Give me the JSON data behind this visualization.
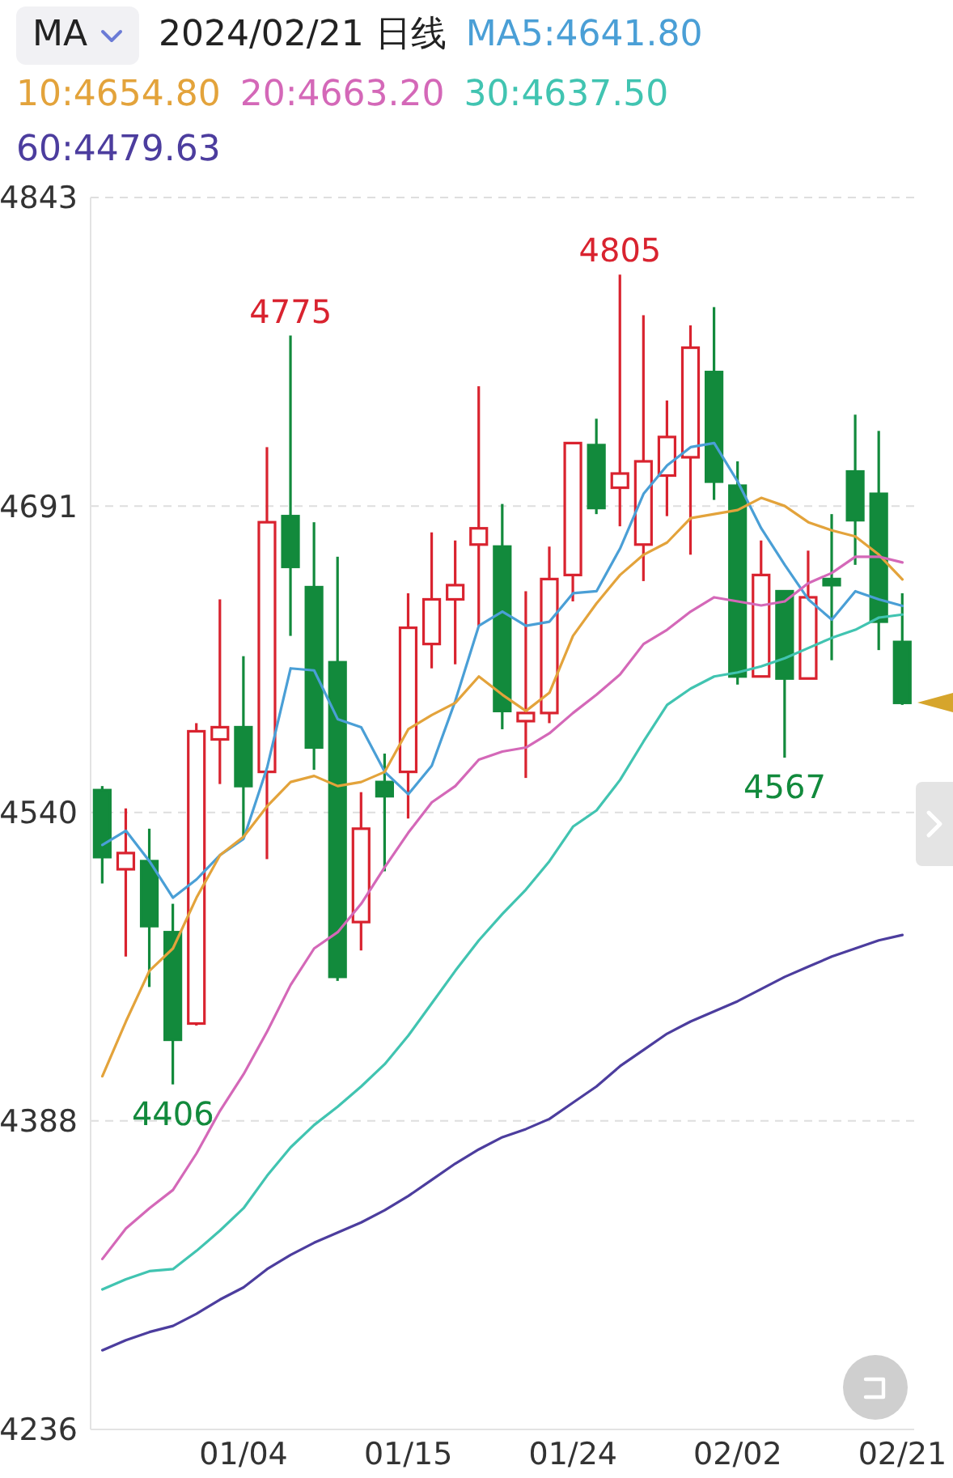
{
  "chart_data": {
    "type": "candlestick",
    "title": "2024/02/21 日线",
    "legend_title": "MA",
    "legend": "top left",
    "grid": "y",
    "categories": [
      null,
      null,
      null,
      null,
      null,
      null,
      "01/04",
      null,
      null,
      null,
      null,
      null,
      null,
      "01/15",
      null,
      null,
      null,
      null,
      null,
      null,
      "01/24",
      null,
      null,
      null,
      null,
      null,
      null,
      "02/02",
      null,
      null,
      null,
      null,
      null,
      null,
      "02/21"
    ],
    "ohlc": [
      [
        4551,
        4553,
        4505,
        4518
      ],
      [
        4512,
        4542,
        4469,
        4520
      ],
      [
        4516,
        4532,
        4454,
        4484
      ],
      [
        4481,
        4495,
        4406,
        4428
      ],
      [
        4436,
        4584,
        4435,
        4580
      ],
      [
        4576,
        4645,
        4554,
        4582
      ],
      [
        4582,
        4617,
        4528,
        4553
      ],
      [
        4560,
        4720,
        4517,
        4683
      ],
      [
        4686,
        4775,
        4627,
        4661
      ],
      [
        4651,
        4683,
        4561,
        4572
      ],
      [
        4614,
        4666,
        4457,
        4459
      ],
      [
        4486,
        4550,
        4472,
        4532
      ],
      [
        4555,
        4569,
        4511,
        4548
      ],
      [
        4560,
        4648,
        4537,
        4631
      ],
      [
        4623,
        4678,
        4611,
        4645
      ],
      [
        4645,
        4674,
        4613,
        4652
      ],
      [
        4672,
        4750,
        4632,
        4680
      ],
      [
        4671,
        4692,
        4581,
        4590
      ],
      [
        4585,
        4649,
        4557,
        4589
      ],
      [
        4589,
        4671,
        4584,
        4655
      ],
      [
        4657,
        4722,
        4644,
        4722
      ],
      [
        4721,
        4734,
        4687,
        4690
      ],
      [
        4700,
        4805,
        4681,
        4707
      ],
      [
        4672,
        4785,
        4654,
        4713
      ],
      [
        4706,
        4743,
        4686,
        4725
      ],
      [
        4715,
        4780,
        4667,
        4769
      ],
      [
        4757,
        4789,
        4694,
        4703
      ],
      [
        4701,
        4713,
        4603,
        4607
      ],
      [
        4607,
        4674,
        4607,
        4657
      ],
      [
        4649,
        4649,
        4567,
        4606
      ],
      [
        4606,
        4669,
        4606,
        4646
      ],
      [
        4655,
        4687,
        4615,
        4652
      ],
      [
        4708,
        4736,
        4662,
        4684
      ],
      [
        4697,
        4728,
        4620,
        4634
      ],
      [
        4624,
        4648,
        4593,
        4594
      ]
    ],
    "colors": [
      "#128a3c",
      "#d9232f",
      "#128a3c",
      "#128a3c",
      "#d9232f",
      "#d9232f",
      "#128a3c",
      "#d9232f",
      "#128a3c",
      "#128a3c",
      "#128a3c",
      "#d9232f",
      "#128a3c",
      "#d9232f",
      "#d9232f",
      "#d9232f",
      "#d9232f",
      "#128a3c",
      "#d9232f",
      "#d9232f",
      "#d9232f",
      "#128a3c",
      "#d9232f",
      "#d9232f",
      "#d9232f",
      "#d9232f",
      "#128a3c",
      "#128a3c",
      "#d9232f",
      "#128a3c",
      "#d9232f",
      "#128a3c",
      "#128a3c",
      "#128a3c",
      "#128a3c"
    ],
    "series": [
      {
        "type": "line",
        "name": "MA5:4641.80",
        "color": "#4a9fd6",
        "values": [
          4524,
          4531,
          4516,
          4498,
          4507,
          4519,
          4527,
          4562,
          4611,
          4610,
          4586,
          4582,
          4560,
          4549,
          4563,
          4595,
          4632,
          4639,
          4632,
          4634,
          4648,
          4649,
          4670,
          4697,
          4711,
          4720,
          4722,
          4703,
          4680,
          4662,
          4645,
          4635,
          4649,
          4645,
          4641.8
        ]
      },
      {
        "type": "line",
        "name": "10:4654.80",
        "color": "#e3a33b",
        "values": [
          4410,
          4437,
          4462,
          4473,
          4498,
          4519,
          4528,
          4543,
          4555,
          4558,
          4553,
          4555,
          4560,
          4581,
          4588,
          4594,
          4607,
          4598,
          4590,
          4599,
          4627,
          4643,
          4657,
          4667,
          4673,
          4685,
          4687,
          4689,
          4695,
          4691,
          4683,
          4679,
          4676,
          4667,
          4654.8
        ]
      },
      {
        "type": "line",
        "name": "20:4663.20",
        "color": "#d468b8",
        "values": [
          4320,
          4335,
          4345,
          4354,
          4372,
          4393,
          4411,
          4432,
          4455,
          4473,
          4481,
          4495,
          4513,
          4530,
          4545,
          4553,
          4566,
          4570,
          4572,
          4579,
          4589,
          4598,
          4608,
          4623,
          4630,
          4639,
          4646,
          4644,
          4642,
          4644,
          4653,
          4658,
          4666,
          4666,
          4663.2
        ]
      },
      {
        "type": "line",
        "name": "30:4637.50",
        "color": "#41c4b1",
        "values": [
          4305,
          4310,
          4314,
          4315,
          4324,
          4334,
          4345,
          4361,
          4375,
          4386,
          4395,
          4405,
          4416,
          4430,
          4446,
          4462,
          4477,
          4490,
          4502,
          4516,
          4533,
          4541,
          4556,
          4575,
          4593,
          4601,
          4607,
          4609,
          4612,
          4616,
          4621,
          4626,
          4630,
          4636,
          4637.5
        ]
      },
      {
        "type": "line",
        "name": "60:4479.63",
        "color": "#4c3d9e",
        "values": [
          4275,
          4280,
          4284,
          4287,
          4293,
          4300,
          4306,
          4315,
          4322,
          4328,
          4333,
          4338,
          4344,
          4351,
          4359,
          4367,
          4374,
          4380,
          4384,
          4389,
          4397,
          4405,
          4415,
          4423,
          4431,
          4437,
          4442,
          4447,
          4453,
          4459,
          4464,
          4469,
          4473,
          4477,
          4479.63
        ]
      }
    ],
    "ylim": [
      4236,
      4843
    ],
    "yticks": [
      4236,
      4388,
      4540,
      4691,
      4843
    ],
    "annotations": [
      {
        "text": "4775",
        "y": 4775
      },
      {
        "text": "4805",
        "y": 4805
      },
      {
        "text": "4406",
        "y": 4406
      },
      {
        "text": "4567",
        "y": 4567
      }
    ]
  }
}
